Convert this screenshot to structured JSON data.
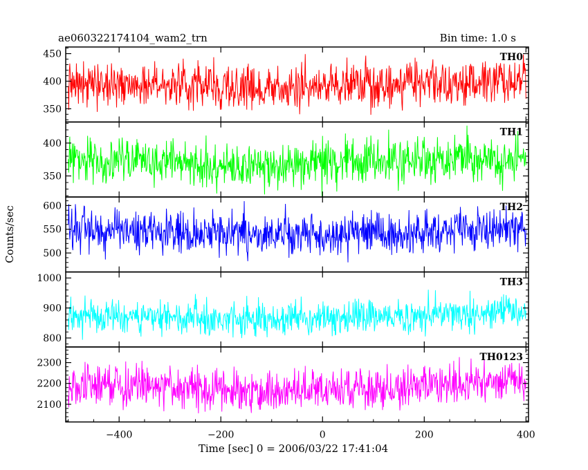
{
  "chart_data": {
    "type": "line",
    "title": "ae060322174104_wam2_trn",
    "subtitle": "Bin time: 1.0 s",
    "xlabel": "Time [sec] 0 = 2006/03/22 17:41:04",
    "ylabel": "Counts/sec",
    "xlim": [
      -505,
      405
    ],
    "xticks": [
      -400,
      -200,
      0,
      200,
      400
    ],
    "xtick_labels": [
      "−400",
      "−200",
      "0",
      "200",
      "400"
    ],
    "x_start": -500,
    "x_end": 400,
    "bin_time": 1.0,
    "grid": false,
    "panels": [
      {
        "name": "TH0",
        "color": "#ff0000",
        "ylim": [
          326,
          462
        ],
        "yticks": [
          350,
          400,
          450
        ],
        "ytick_labels": [
          "350",
          "400",
          "450"
        ],
        "trend": [
          [
            -500,
            398
          ],
          [
            -300,
            392
          ],
          [
            -100,
            386
          ],
          [
            0,
            392
          ],
          [
            200,
            396
          ],
          [
            400,
            402
          ]
        ],
        "noise": 20
      },
      {
        "name": "TH1",
        "color": "#00ff00",
        "ylim": [
          318,
          432
        ],
        "yticks": [
          350,
          400
        ],
        "ytick_labels": [
          "350",
          "400"
        ],
        "trend": [
          [
            -500,
            376
          ],
          [
            -300,
            370
          ],
          [
            -100,
            364
          ],
          [
            0,
            368
          ],
          [
            200,
            374
          ],
          [
            400,
            378
          ]
        ],
        "noise": 17
      },
      {
        "name": "TH2",
        "color": "#0000ff",
        "ylim": [
          460,
          618
        ],
        "yticks": [
          500,
          550,
          600
        ],
        "ytick_labels": [
          "500",
          "550",
          "600"
        ],
        "trend": [
          [
            -500,
            550
          ],
          [
            -300,
            545
          ],
          [
            -100,
            540
          ],
          [
            0,
            538
          ],
          [
            200,
            545
          ],
          [
            400,
            550
          ]
        ],
        "noise": 22
      },
      {
        "name": "TH3",
        "color": "#00ffff",
        "ylim": [
          770,
          1020
        ],
        "yticks": [
          800,
          900,
          1000
        ],
        "ytick_labels": [
          "800",
          "900",
          "1000"
        ],
        "trend": [
          [
            -500,
            872
          ],
          [
            -300,
            866
          ],
          [
            -100,
            860
          ],
          [
            0,
            866
          ],
          [
            200,
            876
          ],
          [
            400,
            890
          ]
        ],
        "noise": 28
      },
      {
        "name": "TH0123",
        "color": "#ff00ff",
        "ylim": [
          2015,
          2375
        ],
        "yticks": [
          2100,
          2200,
          2300
        ],
        "ytick_labels": [
          "2100",
          "2200",
          "2300"
        ],
        "trend": [
          [
            -500,
            2195
          ],
          [
            -300,
            2180
          ],
          [
            -100,
            2160
          ],
          [
            0,
            2165
          ],
          [
            200,
            2185
          ],
          [
            400,
            2210
          ]
        ],
        "noise": 48
      }
    ]
  }
}
